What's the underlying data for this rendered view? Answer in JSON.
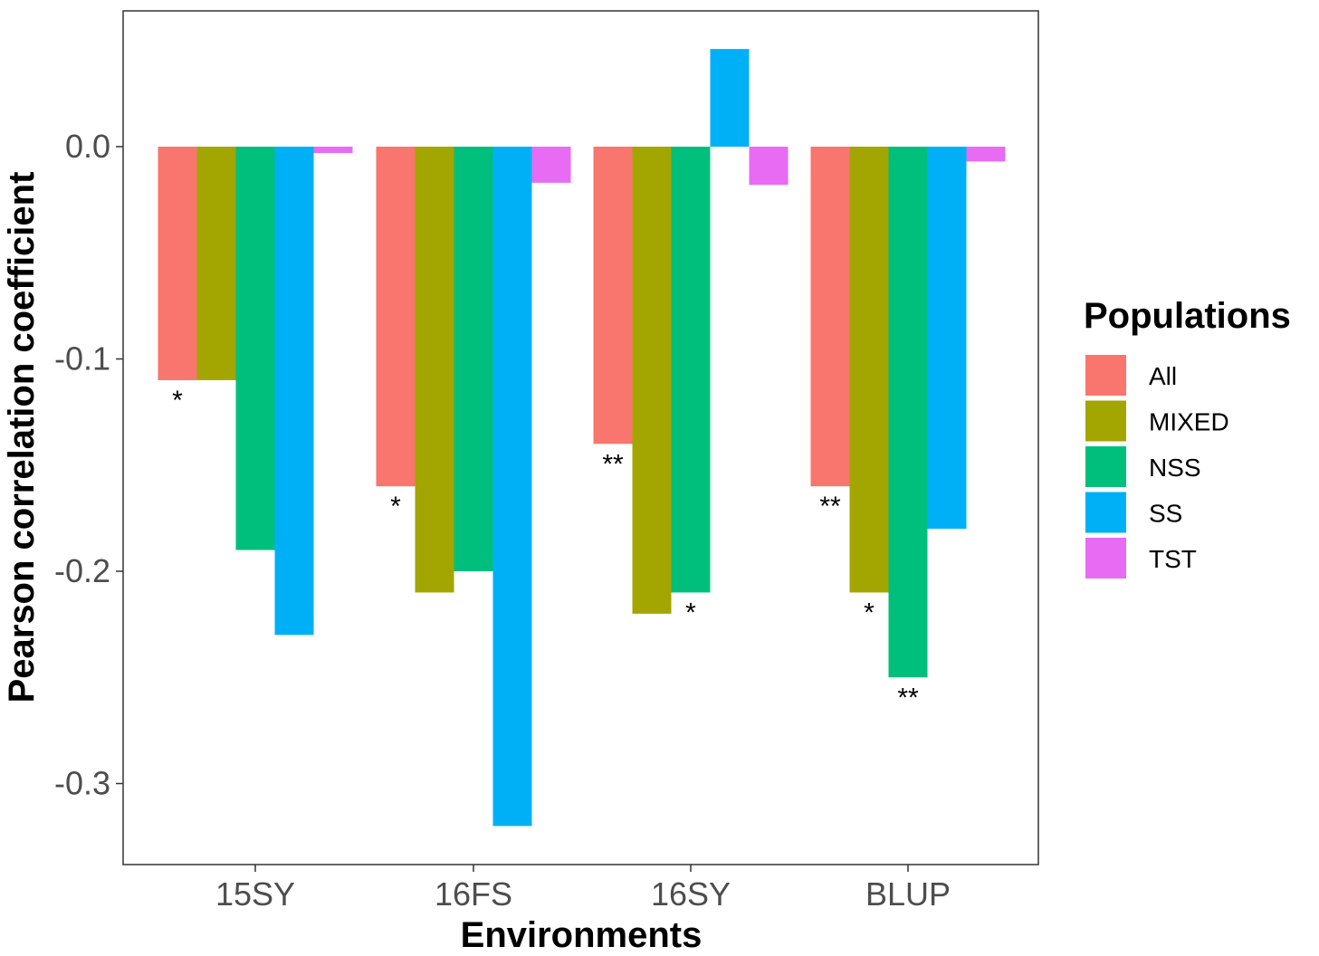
{
  "chart_data": {
    "type": "bar",
    "title": "",
    "xlabel": "Environments",
    "ylabel": "Pearson correlation coefficient",
    "categories": [
      "15SY",
      "16FS",
      "16SY",
      "BLUP"
    ],
    "ylim": [
      -0.34,
      0.056
    ],
    "yticks": [
      0.0,
      -0.1,
      -0.2,
      -0.3
    ],
    "ytick_labels": [
      "0.0",
      "-0.1",
      "-0.2",
      "-0.3"
    ],
    "grid": false,
    "legend": {
      "title": "Populations",
      "placement": "right"
    },
    "series": [
      {
        "name": "All",
        "color": "#F8766D",
        "values": [
          -0.11,
          -0.16,
          -0.14,
          -0.16
        ],
        "annotations": [
          "*",
          "*",
          "**",
          "**"
        ]
      },
      {
        "name": "MIXED",
        "color": "#A3A500",
        "values": [
          -0.11,
          -0.21,
          -0.22,
          -0.21
        ],
        "annotations": [
          "",
          "",
          "",
          "*"
        ]
      },
      {
        "name": "NSS",
        "color": "#00BF7D",
        "values": [
          -0.19,
          -0.2,
          -0.21,
          -0.25
        ],
        "annotations": [
          "",
          "",
          "*",
          "**"
        ]
      },
      {
        "name": "SS",
        "color": "#00B0F6",
        "values": [
          -0.23,
          -0.32,
          0.046,
          -0.18
        ],
        "annotations": [
          "",
          "",
          "",
          ""
        ]
      },
      {
        "name": "TST",
        "color": "#E76BF3",
        "values": [
          -0.003,
          -0.017,
          -0.018,
          -0.007
        ],
        "annotations": [
          "",
          "",
          "",
          ""
        ]
      }
    ]
  }
}
